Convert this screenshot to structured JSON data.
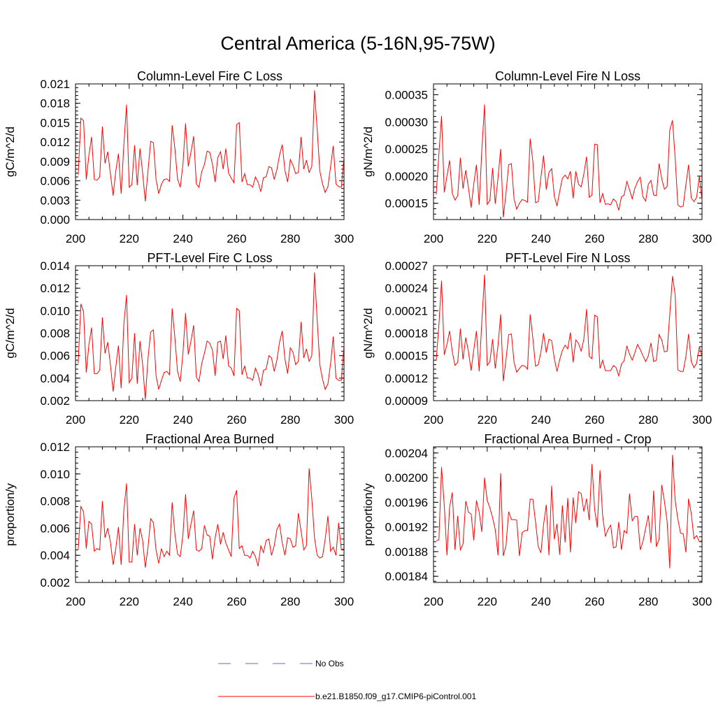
{
  "figure": {
    "title": "Central America (5-16N,95-75W)"
  },
  "legend": [
    {
      "label": "No Obs",
      "color": "#6a6ab8",
      "style": "dashed"
    },
    {
      "label": "b.e21.B1850.f09_g17.CMIP6-piControl.001",
      "color": "#ff0000",
      "style": "solid"
    }
  ],
  "chart_data": [
    {
      "type": "line",
      "title": "Column-Level Fire C Loss",
      "ylabel": "gC/m^2/d",
      "xlim": [
        200,
        300
      ],
      "ylim": [
        0,
        0.021
      ],
      "xticks": [
        200,
        220,
        240,
        260,
        280,
        300
      ],
      "xtick_labels": [
        "200",
        "220",
        "240",
        "260",
        "280",
        "300"
      ],
      "yticks": [
        0,
        0.003,
        0.006,
        0.009,
        0.012,
        0.015,
        0.018,
        0.021
      ],
      "ytick_labels": [
        "0.000",
        "0.003",
        "0.006",
        "0.009",
        "0.012",
        "0.015",
        "0.018",
        "0.021"
      ],
      "x_start": 201,
      "series": [
        {
          "name": "b.e21.B1850.f09_g17.CMIP6-piControl.001",
          "color": "#ff0000",
          "values": [
            0.0069,
            0.0157,
            0.0153,
            0.0062,
            0.01,
            0.0128,
            0.0062,
            0.0061,
            0.0066,
            0.0144,
            0.0087,
            0.0105,
            0.0071,
            0.0037,
            0.0075,
            0.0102,
            0.004,
            0.0115,
            0.0178,
            0.005,
            0.0054,
            0.0115,
            0.0053,
            0.011,
            0.0072,
            0.0028,
            0.0076,
            0.0121,
            0.0119,
            0.0062,
            0.004,
            0.0055,
            0.0062,
            0.0063,
            0.0059,
            0.0146,
            0.011,
            0.0063,
            0.005,
            0.0085,
            0.0149,
            0.0082,
            0.0104,
            0.0129,
            0.0055,
            0.005,
            0.0074,
            0.0085,
            0.0106,
            0.0104,
            0.0086,
            0.0058,
            0.0096,
            0.0105,
            0.0078,
            0.011,
            0.0072,
            0.0064,
            0.0057,
            0.0147,
            0.015,
            0.0058,
            0.0071,
            0.0054,
            0.0054,
            0.005,
            0.0066,
            0.0058,
            0.0043,
            0.0065,
            0.0066,
            0.0082,
            0.008,
            0.0062,
            0.0077,
            0.01,
            0.0116,
            0.0076,
            0.0058,
            0.0093,
            0.0084,
            0.0071,
            0.0073,
            0.0128,
            0.0078,
            0.0092,
            0.0073,
            0.0082,
            0.02,
            0.014,
            0.0075,
            0.0055,
            0.0042,
            0.0051,
            0.0082,
            0.0114,
            0.0055,
            0.0051,
            0.005,
            0.0098
          ]
        }
      ]
    },
    {
      "type": "line",
      "title": "Column-Level Fire N Loss",
      "ylabel": "gN/m^2/d",
      "xlim": [
        200,
        300
      ],
      "ylim": [
        0.00012,
        0.00037
      ],
      "xticks": [
        200,
        220,
        240,
        260,
        280,
        300
      ],
      "xtick_labels": [
        "200",
        "220",
        "240",
        "260",
        "280",
        "300"
      ],
      "yticks": [
        0.00015,
        0.0002,
        0.00025,
        0.0003,
        0.00035
      ],
      "ytick_labels": [
        "0.00015",
        "0.00020",
        "0.00025",
        "0.00030",
        "0.00035"
      ],
      "x_start": 201,
      "series": [
        {
          "name": "b.e21.B1850.f09_g17.CMIP6-piControl.001",
          "color": "#ff0000",
          "values": [
            0.000166,
            0.000241,
            0.000311,
            0.00017,
            0.0002,
            0.000229,
            0.000168,
            0.000156,
            0.000164,
            0.000234,
            0.000177,
            0.000211,
            0.000179,
            0.000142,
            0.000186,
            0.000221,
            0.000147,
            0.000248,
            0.000332,
            0.000148,
            0.000155,
            0.000215,
            0.000149,
            0.000196,
            0.00025,
            0.000124,
            0.000169,
            0.000221,
            0.000223,
            0.000158,
            0.000139,
            0.00015,
            0.000157,
            0.000155,
            0.000152,
            0.000269,
            0.000227,
            0.000151,
            0.000153,
            0.000198,
            0.000238,
            0.000175,
            0.000207,
            0.000214,
            0.000163,
            0.000145,
            0.000172,
            0.000196,
            0.000202,
            0.000195,
            0.000209,
            0.000159,
            0.000209,
            0.000185,
            0.00018,
            0.000204,
            0.000236,
            0.000161,
            0.000165,
            0.000259,
            0.000258,
            0.000151,
            0.000168,
            0.000148,
            0.000149,
            0.000147,
            0.000158,
            0.000153,
            0.000137,
            0.000162,
            0.000165,
            0.00019,
            0.000175,
            0.000158,
            0.000178,
            0.00019,
            0.000198,
            0.000162,
            0.000154,
            0.000185,
            0.000192,
            0.000165,
            0.000164,
            0.000223,
            0.000195,
            0.000176,
            0.000181,
            0.000285,
            0.000303,
            0.000234,
            0.000147,
            0.000143,
            0.000145,
            0.000185,
            0.000221,
            0.00016,
            0.000153,
            0.000161,
            0.0002,
            0.000155
          ]
        }
      ]
    },
    {
      "type": "line",
      "title": "PFT-Level Fire C Loss",
      "ylabel": "gC/m^2/d",
      "xlim": [
        200,
        300
      ],
      "ylim": [
        0.002,
        0.014
      ],
      "xticks": [
        200,
        220,
        240,
        260,
        280,
        300
      ],
      "xtick_labels": [
        "200",
        "220",
        "240",
        "260",
        "280",
        "300"
      ],
      "yticks": [
        0.002,
        0.004,
        0.006,
        0.008,
        0.01,
        0.012,
        0.014
      ],
      "ytick_labels": [
        "0.002",
        "0.004",
        "0.006",
        "0.008",
        "0.010",
        "0.012",
        "0.014"
      ],
      "x_start": 201,
      "series": [
        {
          "name": "b.e21.B1850.f09_g17.CMIP6-piControl.001",
          "color": "#ff0000",
          "values": [
            0.0053,
            0.0106,
            0.0099,
            0.0045,
            0.007,
            0.0085,
            0.0044,
            0.0044,
            0.0047,
            0.0094,
            0.0062,
            0.0072,
            0.0052,
            0.0028,
            0.005,
            0.0069,
            0.0031,
            0.0088,
            0.0114,
            0.0036,
            0.004,
            0.008,
            0.0035,
            0.0073,
            0.0052,
            0.0021,
            0.0058,
            0.0081,
            0.0083,
            0.0042,
            0.003,
            0.0038,
            0.0045,
            0.0046,
            0.0043,
            0.0102,
            0.0076,
            0.0046,
            0.0037,
            0.0062,
            0.0098,
            0.0061,
            0.0073,
            0.0087,
            0.0041,
            0.0037,
            0.0053,
            0.0062,
            0.0073,
            0.0071,
            0.0065,
            0.0042,
            0.0072,
            0.0073,
            0.0057,
            0.0078,
            0.0051,
            0.0049,
            0.0042,
            0.0102,
            0.01,
            0.0043,
            0.0051,
            0.004,
            0.004,
            0.0038,
            0.0049,
            0.0043,
            0.0033,
            0.0047,
            0.0048,
            0.006,
            0.0058,
            0.0046,
            0.0056,
            0.0072,
            0.0082,
            0.0057,
            0.0044,
            0.0067,
            0.0063,
            0.0052,
            0.0055,
            0.009,
            0.0058,
            0.0066,
            0.0055,
            0.006,
            0.0134,
            0.0092,
            0.0052,
            0.0039,
            0.003,
            0.0035,
            0.0053,
            0.0077,
            0.004,
            0.0038,
            0.0038,
            0.007
          ]
        }
      ]
    },
    {
      "type": "line",
      "title": "PFT-Level Fire N Loss",
      "ylabel": "gN/m^2/d",
      "xlim": [
        200,
        300
      ],
      "ylim": [
        9e-05,
        0.00027
      ],
      "xticks": [
        200,
        220,
        240,
        260,
        280,
        300
      ],
      "xtick_labels": [
        "200",
        "220",
        "240",
        "260",
        "280",
        "300"
      ],
      "yticks": [
        9e-05,
        0.00012,
        0.00015,
        0.00018,
        0.00021,
        0.00024,
        0.00027
      ],
      "ytick_labels": [
        "0.00009",
        "0.00012",
        "0.00015",
        "0.00018",
        "0.00021",
        "0.00024",
        "0.00027"
      ],
      "x_start": 201,
      "series": [
        {
          "name": "b.e21.B1850.f09_g17.CMIP6-piControl.001",
          "color": "#ff0000",
          "values": [
            0.000143,
            0.000191,
            0.00025,
            0.000151,
            0.000165,
            0.000183,
            0.000155,
            0.000137,
            0.000141,
            0.000186,
            0.000145,
            0.000174,
            0.000156,
            0.00013,
            0.000158,
            0.000183,
            0.000129,
            0.000195,
            0.000258,
            0.000137,
            0.000142,
            0.000172,
            0.000133,
            0.000163,
            0.000205,
            0.000116,
            0.000145,
            0.000178,
            0.000179,
            0.000141,
            0.000128,
            0.000133,
            0.000137,
            0.000136,
            0.000132,
            0.000205,
            0.000173,
            0.000136,
            0.000138,
            0.000155,
            0.00018,
            0.000154,
            0.000172,
            0.00017,
            0.000146,
            0.000129,
            0.000145,
            0.000157,
            0.000164,
            0.000159,
            0.000181,
            0.000141,
            0.000171,
            0.000166,
            0.000156,
            0.000172,
            0.000212,
            0.000149,
            0.000146,
            0.000204,
            0.000202,
            0.000133,
            0.000144,
            0.00013,
            0.00013,
            0.00013,
            0.000137,
            0.000134,
            0.000123,
            0.000139,
            0.000143,
            0.000163,
            0.000152,
            0.000144,
            0.000154,
            0.000165,
            0.000158,
            0.00015,
            0.000142,
            0.00015,
            0.000167,
            0.000142,
            0.000144,
            0.000178,
            0.000171,
            0.000155,
            0.000156,
            0.000205,
            0.000256,
            0.000231,
            0.000131,
            0.000129,
            0.000129,
            0.000149,
            0.000179,
            0.000142,
            0.000134,
            0.00014,
            0.000162,
            0.000148
          ]
        }
      ]
    },
    {
      "type": "line",
      "title": "Fractional Area Burned",
      "ylabel": "proportion/y",
      "xlim": [
        200,
        300
      ],
      "ylim": [
        0.002,
        0.012
      ],
      "xticks": [
        200,
        220,
        240,
        260,
        280,
        300
      ],
      "xtick_labels": [
        "200",
        "220",
        "240",
        "260",
        "280",
        "300"
      ],
      "yticks": [
        0.002,
        0.004,
        0.006,
        0.008,
        0.01,
        0.012
      ],
      "ytick_labels": [
        "0.002",
        "0.004",
        "0.006",
        "0.008",
        "0.010",
        "0.012"
      ],
      "x_start": 201,
      "series": [
        {
          "name": "b.e21.B1850.f09_g17.CMIP6-piControl.001",
          "color": "#ff0000",
          "values": [
            0.0044,
            0.0076,
            0.0072,
            0.0045,
            0.0065,
            0.0063,
            0.0043,
            0.0045,
            0.0044,
            0.008,
            0.0053,
            0.006,
            0.005,
            0.0033,
            0.0045,
            0.0061,
            0.0033,
            0.0073,
            0.0093,
            0.0035,
            0.0035,
            0.0063,
            0.004,
            0.006,
            0.0051,
            0.0031,
            0.0046,
            0.0067,
            0.0064,
            0.0044,
            0.0034,
            0.0045,
            0.0039,
            0.0043,
            0.004,
            0.0079,
            0.0056,
            0.0041,
            0.0039,
            0.0055,
            0.0085,
            0.0052,
            0.0063,
            0.0073,
            0.0044,
            0.0043,
            0.0045,
            0.0062,
            0.0055,
            0.0054,
            0.0037,
            0.0053,
            0.0063,
            0.0048,
            0.0057,
            0.0049,
            0.0044,
            0.0039,
            0.0082,
            0.0088,
            0.0045,
            0.0047,
            0.004,
            0.004,
            0.0038,
            0.0043,
            0.0039,
            0.0032,
            0.0047,
            0.0042,
            0.0051,
            0.0052,
            0.004,
            0.0047,
            0.0059,
            0.0063,
            0.0049,
            0.004,
            0.0053,
            0.0052,
            0.0046,
            0.0047,
            0.0071,
            0.0058,
            0.0044,
            0.0047,
            0.0104,
            0.0082,
            0.0053,
            0.004,
            0.0038,
            0.0039,
            0.0052,
            0.0069,
            0.0043,
            0.0046,
            0.004,
            0.0064,
            0.0044,
            0.0045
          ]
        }
      ]
    },
    {
      "type": "line",
      "title": "Fractional Area Burned - Crop",
      "ylabel": "proportion/y",
      "xlim": [
        200,
        300
      ],
      "ylim": [
        0.00183,
        0.00205
      ],
      "xticks": [
        200,
        220,
        240,
        260,
        280,
        300
      ],
      "xtick_labels": [
        "200",
        "220",
        "240",
        "260",
        "280",
        "300"
      ],
      "yticks": [
        0.00184,
        0.00188,
        0.00192,
        0.00196,
        0.002,
        0.00204
      ],
      "ytick_labels": [
        "0.00184",
        "0.00188",
        "0.00192",
        "0.00196",
        "0.00200",
        "0.00204"
      ],
      "x_start": 201,
      "series": [
        {
          "name": "b.e21.B1850.f09_g17.CMIP6-piControl.001",
          "color": "#ff0000",
          "values": [
            0.001898,
            0.001899,
            0.002017,
            0.001955,
            0.001874,
            0.001952,
            0.001976,
            0.001883,
            0.001938,
            0.001883,
            0.001892,
            0.001962,
            0.001944,
            0.001941,
            0.001898,
            0.001963,
            0.001944,
            0.001912,
            0.002,
            0.001963,
            0.001951,
            0.001935,
            0.001916,
            0.001874,
            0.002007,
            0.001873,
            0.00189,
            0.001945,
            0.001932,
            0.001932,
            0.001931,
            0.001873,
            0.001911,
            0.001914,
            0.001914,
            0.001965,
            0.001965,
            0.001928,
            0.001888,
            0.001878,
            0.001924,
            0.001956,
            0.001874,
            0.001987,
            0.0019,
            0.001925,
            0.001875,
            0.001955,
            0.001895,
            0.001967,
            0.001879,
            0.001968,
            0.001926,
            0.001977,
            0.001974,
            0.001945,
            0.001966,
            0.001931,
            0.002022,
            0.001949,
            0.001919,
            0.002012,
            0.001938,
            0.001905,
            0.001916,
            0.001923,
            0.001886,
            0.001888,
            0.001928,
            0.001883,
            0.001914,
            0.00191,
            0.001974,
            0.00193,
            0.001937,
            0.001937,
            0.001883,
            0.001896,
            0.001918,
            0.001939,
            0.001894,
            0.001979,
            0.001888,
            0.0019,
            0.001988,
            0.001962,
            0.001929,
            0.001853,
            0.002037,
            0.001963,
            0.001933,
            0.00191,
            0.001909,
            0.001879,
            0.001966,
            0.001942,
            0.001901,
            0.001906,
            0.001896,
            0.001898
          ]
        }
      ]
    }
  ]
}
